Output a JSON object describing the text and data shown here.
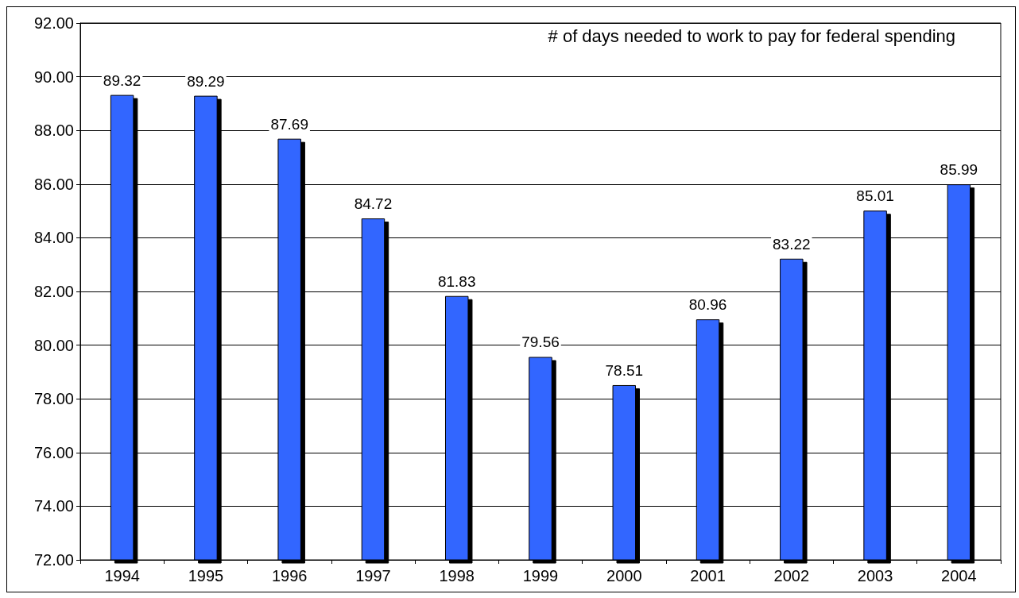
{
  "chart_data": {
    "type": "bar",
    "title": "# of days needed to work to pay for federal spending",
    "categories": [
      "1994",
      "1995",
      "1996",
      "1997",
      "1998",
      "1999",
      "2000",
      "2001",
      "2002",
      "2003",
      "2004"
    ],
    "values": [
      89.32,
      89.29,
      87.69,
      84.72,
      81.83,
      79.56,
      78.51,
      80.96,
      83.22,
      85.01,
      85.99
    ],
    "color": "#3366ff",
    "ylim": [
      72,
      92
    ],
    "yticks": [
      {
        "value": 72,
        "label": "72.00"
      },
      {
        "value": 74,
        "label": "74.00"
      },
      {
        "value": 76,
        "label": "76.00"
      },
      {
        "value": 78,
        "label": "78.00"
      },
      {
        "value": 80,
        "label": "80.00"
      },
      {
        "value": 82,
        "label": "82.00"
      },
      {
        "value": 84,
        "label": "84.00"
      },
      {
        "value": 86,
        "label": "86.00"
      },
      {
        "value": 88,
        "label": "88.00"
      },
      {
        "value": 90,
        "label": "90.00"
      },
      {
        "value": 92,
        "label": "92.00"
      }
    ],
    "grid": "y",
    "data_labels": true
  }
}
